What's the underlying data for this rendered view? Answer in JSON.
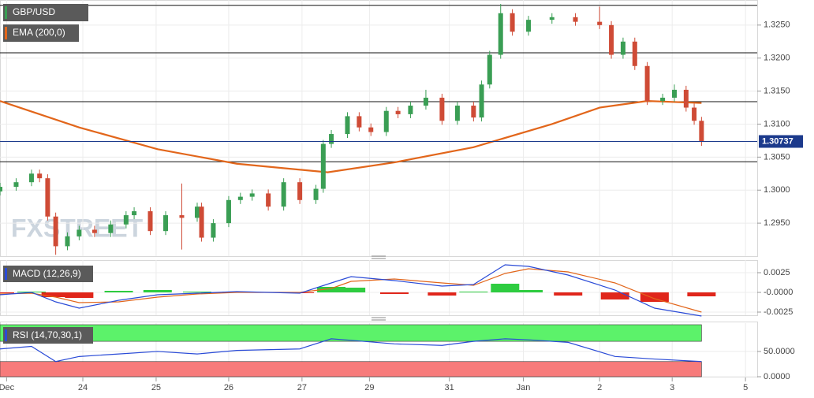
{
  "chart_data": [
    {
      "type": "candlestick",
      "name": "GBP/USD",
      "watermark": "FXSTREET",
      "xlim": [
        -0.09,
        10.24
      ],
      "xticks": [
        {
          "value": 0,
          "label": "Dec"
        },
        {
          "value": 1.04,
          "label": "24"
        },
        {
          "value": 2.04,
          "label": "25"
        },
        {
          "value": 3.03,
          "label": "26"
        },
        {
          "value": 4.03,
          "label": "27"
        },
        {
          "value": 4.95,
          "label": "29"
        },
        {
          "value": 6.04,
          "label": "31"
        },
        {
          "value": 7.05,
          "label": "Jan"
        },
        {
          "value": 8.09,
          "label": "2"
        },
        {
          "value": 9.08,
          "label": "3"
        },
        {
          "value": 10.08,
          "label": "5"
        }
      ],
      "ylim": [
        1.29,
        1.3288
      ],
      "yticks": [
        {
          "value": 1.295,
          "label": "1.2950"
        },
        {
          "value": 1.3,
          "label": "1.3000"
        },
        {
          "value": 1.305,
          "label": "1.3050"
        },
        {
          "value": 1.31,
          "label": "1.3100"
        },
        {
          "value": 1.315,
          "label": "1.3150"
        },
        {
          "value": 1.32,
          "label": "1.3200"
        },
        {
          "value": 1.325,
          "label": "1.3250"
        }
      ],
      "grid": true,
      "up_color": "#3a9e54",
      "down_color": "#cf4b36",
      "x": [
        -0.09,
        0.13,
        0.34,
        0.45,
        0.56,
        0.67,
        0.83,
        0.99,
        1.2,
        1.42,
        1.63,
        1.74,
        1.96,
        2.17,
        2.39,
        2.6,
        2.66,
        2.82,
        3.03,
        3.19,
        3.35,
        3.57,
        3.78,
        4.0,
        4.22,
        4.32,
        4.43,
        4.65,
        4.81,
        4.97,
        5.18,
        5.34,
        5.51,
        5.72,
        5.94,
        6.15,
        6.37,
        6.48,
        6.59,
        6.74,
        6.9,
        7.12,
        7.44,
        7.76,
        8.09,
        8.25,
        8.41,
        8.57,
        8.74,
        8.95,
        9.11,
        9.27,
        9.38,
        9.48
      ],
      "open": [
        1.2998,
        1.3005,
        1.3012,
        1.3025,
        1.3018,
        1.296,
        1.2915,
        1.293,
        1.294,
        1.2935,
        1.2948,
        1.2962,
        1.2968,
        1.2938,
        1.2962,
        1.2958,
        1.2975,
        1.2928,
        1.295,
        1.2985,
        1.299,
        1.2995,
        1.2975,
        1.3012,
        1.2985,
        1.3002,
        1.307,
        1.3085,
        1.3112,
        1.3095,
        1.3088,
        1.312,
        1.3115,
        1.3128,
        1.314,
        1.3105,
        1.3128,
        1.311,
        1.316,
        1.3205,
        1.3268,
        1.324,
        1.3258,
        1.3262,
        1.3255,
        1.325,
        1.3205,
        1.3225,
        1.3188,
        1.3135,
        1.314,
        1.3152,
        1.3125,
        1.3105
      ],
      "high": [
        1.3011,
        1.3018,
        1.3031,
        1.3031,
        1.3024,
        1.2966,
        1.2936,
        1.2946,
        1.2946,
        1.2954,
        1.2968,
        1.2974,
        1.2974,
        1.2968,
        1.301,
        1.2981,
        1.2981,
        1.2956,
        1.2991,
        1.2996,
        1.3001,
        1.3001,
        1.3018,
        1.3018,
        1.3008,
        1.3076,
        1.3091,
        1.3118,
        1.3118,
        1.3101,
        1.3126,
        1.3126,
        1.3134,
        1.3152,
        1.3146,
        1.3134,
        1.3134,
        1.3166,
        1.3211,
        1.3282,
        1.3274,
        1.3264,
        1.3268,
        1.3268,
        1.3278,
        1.3256,
        1.3231,
        1.3231,
        1.3194,
        1.3146,
        1.316,
        1.3158,
        1.3131,
        1.3111
      ],
      "low": [
        1.2992,
        1.2999,
        1.3006,
        1.3012,
        1.2954,
        1.2902,
        1.2909,
        1.2924,
        1.2929,
        1.2929,
        1.2942,
        1.2956,
        1.2932,
        1.2932,
        1.291,
        1.2952,
        1.2922,
        1.2922,
        1.2944,
        1.2979,
        1.2984,
        1.2969,
        1.2969,
        1.2979,
        1.2979,
        1.2996,
        1.3064,
        1.3079,
        1.3089,
        1.3082,
        1.3082,
        1.3109,
        1.3109,
        1.3122,
        1.3099,
        1.3099,
        1.3104,
        1.3104,
        1.3154,
        1.3199,
        1.3234,
        1.3234,
        1.3252,
        1.3249,
        1.3244,
        1.3199,
        1.3199,
        1.3182,
        1.3129,
        1.3129,
        1.3134,
        1.3119,
        1.3099,
        1.3067
      ],
      "close": [
        1.3005,
        1.3012,
        1.3025,
        1.3018,
        1.296,
        1.2915,
        1.293,
        1.294,
        1.2935,
        1.2948,
        1.2962,
        1.2968,
        1.2938,
        1.2962,
        1.2958,
        1.2975,
        1.2928,
        1.295,
        1.2985,
        1.299,
        1.2995,
        1.2975,
        1.3012,
        1.2985,
        1.3002,
        1.307,
        1.3085,
        1.3112,
        1.3095,
        1.3088,
        1.312,
        1.3115,
        1.3128,
        1.314,
        1.3105,
        1.3128,
        1.311,
        1.316,
        1.3205,
        1.3268,
        1.324,
        1.3258,
        1.3262,
        1.3255,
        1.325,
        1.3205,
        1.3225,
        1.3188,
        1.3135,
        1.314,
        1.3152,
        1.3125,
        1.3105,
        1.3073
      ],
      "ema": {
        "name": "EMA (200,0)",
        "color": "#e2661b",
        "x": [
          -0.09,
          0.99,
          2.06,
          3.14,
          4.38,
          5.29,
          6.37,
          7.44,
          8.09,
          8.74,
          9.48
        ],
        "values": [
          1.3135,
          1.3095,
          1.3062,
          1.304,
          1.3027,
          1.3042,
          1.3065,
          1.31,
          1.3125,
          1.3135,
          1.3132
        ]
      },
      "levels": [
        1.328,
        1.3208,
        1.3134,
        1.3043
      ],
      "level_color": "#111111",
      "last": 1.30737,
      "last_color": "#1c3a8c"
    },
    {
      "type": "macd",
      "name": "MACD (12,26,9)",
      "ylim": [
        -0.0029,
        0.0041
      ],
      "yticks": [
        -0.0025,
        {
          "value": 0,
          "label": "-0.0000"
        },
        0.0025
      ],
      "x": [
        -0.09,
        0.34,
        0.67,
        0.99,
        1.53,
        2.06,
        2.6,
        3.14,
        4.0,
        4.43,
        4.7,
        5.29,
        5.94,
        6.37,
        6.8,
        7.12,
        7.66,
        8.3,
        8.84,
        9.48
      ],
      "macd": {
        "color": "#2a4bd7",
        "values": [
          -0.0003,
          0,
          -0.0012,
          -0.002,
          -0.001,
          -0.0003,
          -0.0001,
          0.0001,
          -0.0001,
          0.0012,
          0.002,
          0.0015,
          0.0008,
          0.001,
          0.0035,
          0.0033,
          0.0022,
          0.0003,
          -0.002,
          -0.003
        ]
      },
      "signal": {
        "color": "#e2661b",
        "values": [
          -0.0002,
          -0.0001,
          -0.0006,
          -0.0013,
          -0.0012,
          -0.0006,
          -0.0002,
          0,
          0,
          0.0005,
          0.0014,
          0.0017,
          0.0012,
          0.0009,
          0.0024,
          0.003,
          0.0026,
          0.0012,
          -0.0008,
          -0.0025
        ]
      },
      "histogram": {
        "up_color": "#2ecc40",
        "down_color": "#e0261b",
        "values": [
          -0.0001,
          0.0001,
          -0.0006,
          -0.0007,
          0.0002,
          0.0003,
          0.0001,
          0.0001,
          -0.0001,
          0.0007,
          0.0006,
          -0.0002,
          -0.0004,
          0.0001,
          0.0011,
          0.0003,
          -0.0004,
          -0.0009,
          -0.0012,
          -0.0005
        ]
      }
    },
    {
      "type": "rsi",
      "name": "RSI (14,70,30,1)",
      "ylim": [
        0,
        106
      ],
      "yticks": [
        {
          "value": 0,
          "label": "0.0000"
        },
        {
          "value": 50,
          "label": "50.0000"
        }
      ],
      "x": [
        -0.09,
        0.34,
        0.67,
        0.99,
        1.53,
        2.06,
        2.6,
        3.14,
        4.0,
        4.43,
        4.7,
        5.29,
        5.94,
        6.37,
        6.8,
        7.12,
        7.66,
        8.3,
        8.84,
        9.48
      ],
      "values": [
        55,
        60,
        30,
        40,
        45,
        50,
        45,
        52,
        55,
        75,
        72,
        65,
        62,
        70,
        75,
        73,
        68,
        40,
        35,
        30
      ],
      "color": "#2a4bd7",
      "overbought": 70,
      "oversold": 30,
      "overbought_color": "#5cf26a",
      "oversold_color": "#f77b7b"
    }
  ]
}
